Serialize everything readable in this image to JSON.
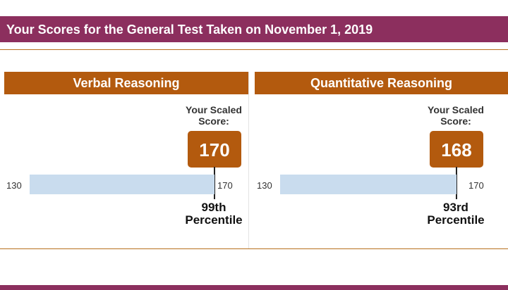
{
  "header": {
    "title": "Your Scores for the General Test Taken on November 1, 2019"
  },
  "sections": [
    {
      "title": "Verbal Reasoning",
      "scaled_label": "Your Scaled Score:",
      "score": "170",
      "scale_min": "130",
      "scale_max": "170",
      "percentile": "99th",
      "percentile_label": "Percentile"
    },
    {
      "title": "Quantitative Reasoning",
      "scaled_label": "Your Scaled Score:",
      "score": "168",
      "scale_min": "130",
      "scale_max": "170",
      "percentile": "93rd",
      "percentile_label": "Percentile"
    }
  ],
  "colors": {
    "header": "#8c2f5e",
    "section_header": "#b35a0e",
    "bar_track": "#c9dcee"
  }
}
